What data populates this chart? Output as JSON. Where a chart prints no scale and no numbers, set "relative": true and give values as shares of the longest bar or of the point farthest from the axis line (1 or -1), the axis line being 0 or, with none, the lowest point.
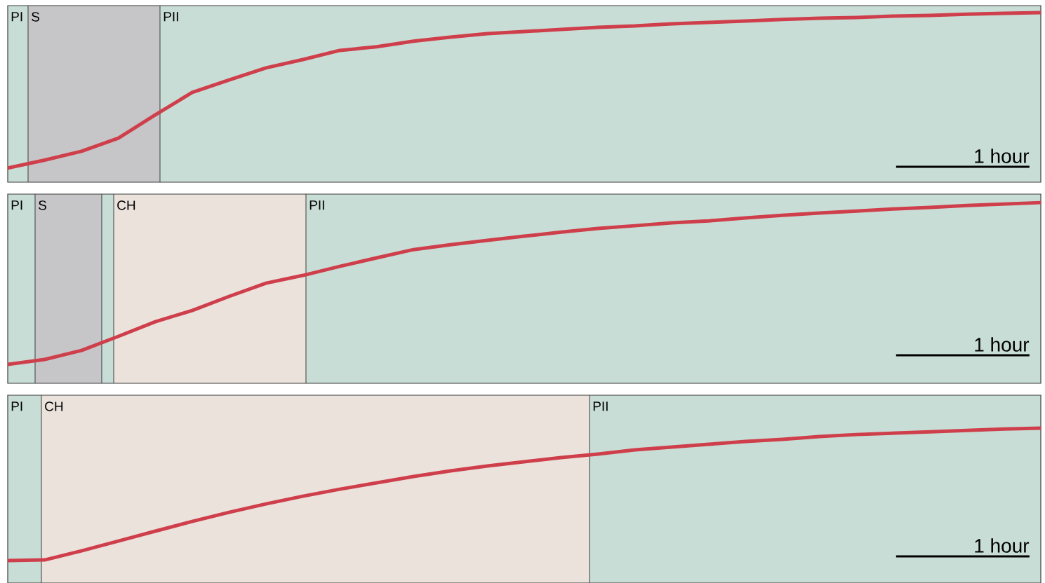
{
  "chart_data": [
    {
      "type": "line",
      "relative": true,
      "tick_labels": false,
      "categories": [
        null,
        null,
        null,
        null,
        null,
        null,
        null,
        null,
        null,
        null,
        null,
        null,
        null,
        null,
        null,
        null,
        null,
        null,
        null,
        null,
        null,
        null,
        null,
        null,
        null,
        null,
        null,
        null,
        null
      ],
      "values": [
        0.083,
        0.13,
        0.182,
        0.26,
        0.397,
        0.529,
        0.603,
        0.674,
        0.723,
        0.777,
        0.798,
        0.831,
        0.855,
        0.876,
        0.888,
        0.901,
        0.913,
        0.921,
        0.934,
        0.942,
        0.95,
        0.959,
        0.967,
        0.971,
        0.979,
        0.983,
        0.99,
        0.996,
        1
      ],
      "color": "#cf3f4b",
      "annotations": [
        "PI",
        "S",
        "PII",
        "1 hour"
      ]
    },
    {
      "type": "line",
      "relative": true,
      "tick_labels": false,
      "categories": [
        null,
        null,
        null,
        null,
        null,
        null,
        null,
        null,
        null,
        null,
        null,
        null,
        null,
        null,
        null,
        null,
        null,
        null,
        null,
        null,
        null,
        null,
        null,
        null,
        null,
        null,
        null,
        null,
        null
      ],
      "values": [
        0.105,
        0.132,
        0.182,
        0.26,
        0.341,
        0.403,
        0.481,
        0.554,
        0.597,
        0.647,
        0.694,
        0.74,
        0.767,
        0.791,
        0.814,
        0.837,
        0.857,
        0.872,
        0.888,
        0.899,
        0.915,
        0.93,
        0.942,
        0.953,
        0.965,
        0.973,
        0.984,
        0.992,
        1
      ],
      "color": "#cf3f4b",
      "annotations": [
        "PI",
        "S",
        "CH",
        "PII",
        "1 hour"
      ]
    },
    {
      "type": "line",
      "relative": true,
      "tick_labels": false,
      "categories": [
        null,
        null,
        null,
        null,
        null,
        null,
        null,
        null,
        null,
        null,
        null,
        null,
        null,
        null,
        null,
        null,
        null,
        null,
        null,
        null,
        null,
        null,
        null,
        null,
        null,
        null,
        null,
        null,
        null
      ],
      "values": [
        0.145,
        0.149,
        0.208,
        0.271,
        0.335,
        0.398,
        0.457,
        0.511,
        0.561,
        0.606,
        0.647,
        0.688,
        0.724,
        0.756,
        0.783,
        0.81,
        0.833,
        0.86,
        0.878,
        0.896,
        0.914,
        0.928,
        0.946,
        0.959,
        0.968,
        0.977,
        0.986,
        0.995,
        1
      ],
      "color": "#cf3f4b",
      "annotations": [
        "PI",
        "CH",
        "PII",
        "1 hour"
      ]
    }
  ]
}
